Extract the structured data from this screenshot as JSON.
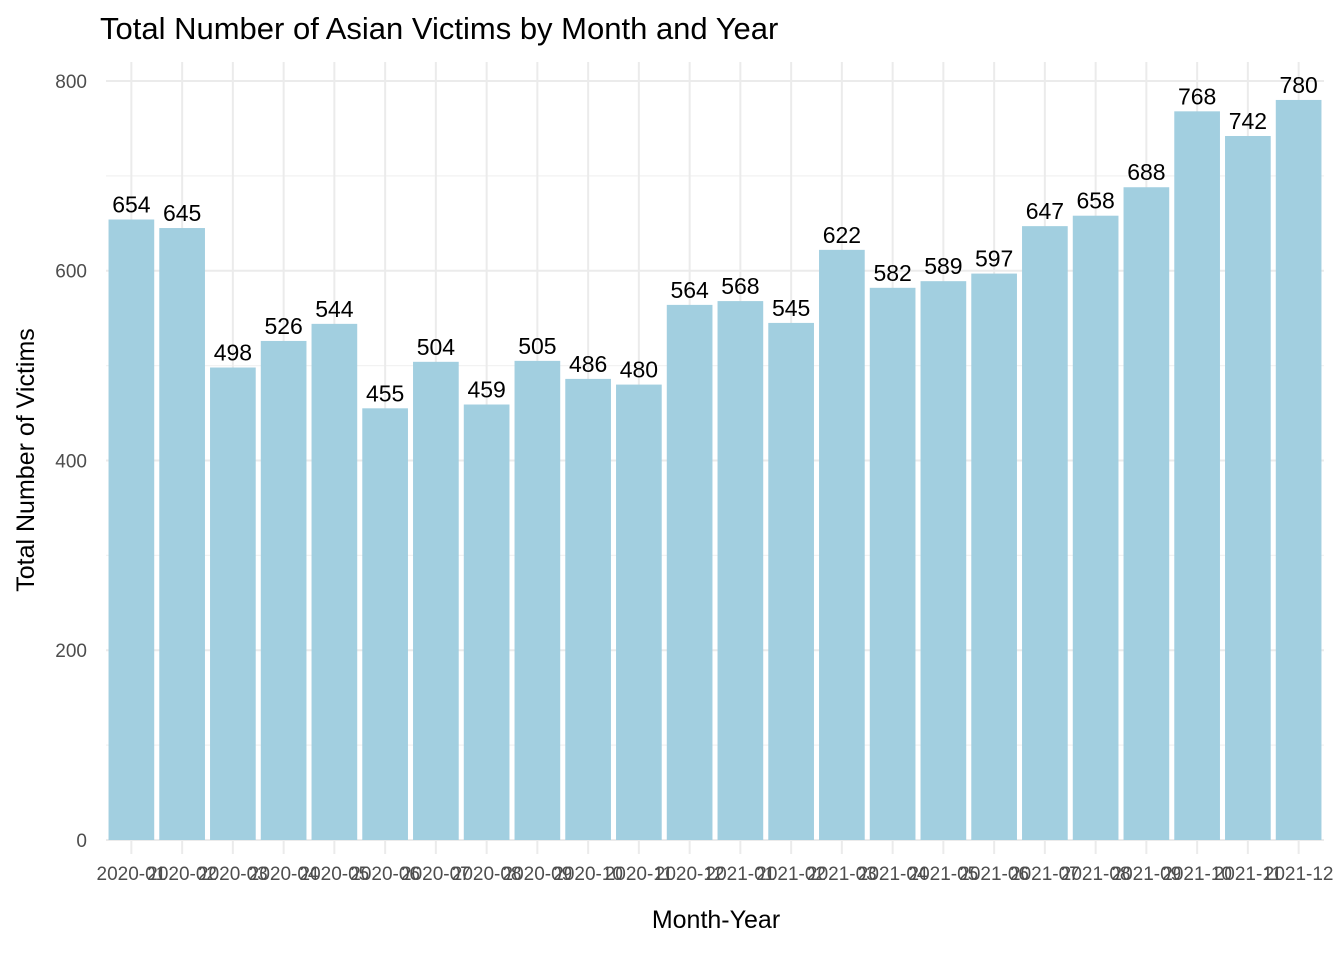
{
  "chart_data": {
    "type": "bar",
    "title": "Total Number of Asian Victims by Month and Year",
    "xlabel": "Month-Year",
    "ylabel": "Total Number of Victims",
    "categories": [
      "2020-01",
      "2020-02",
      "2020-03",
      "2020-04",
      "2020-05",
      "2020-06",
      "2020-07",
      "2020-08",
      "2020-09",
      "2020-10",
      "2020-11",
      "2020-12",
      "2021-01",
      "2021-02",
      "2021-03",
      "2021-04",
      "2021-05",
      "2021-06",
      "2021-07",
      "2021-08",
      "2021-09",
      "2021-10",
      "2021-11",
      "2021-12"
    ],
    "values": [
      654,
      645,
      498,
      526,
      544,
      455,
      504,
      459,
      505,
      486,
      480,
      564,
      568,
      545,
      622,
      582,
      589,
      597,
      647,
      658,
      688,
      768,
      742,
      780
    ],
    "ylim": [
      0,
      820
    ],
    "yticks": [
      0,
      200,
      400,
      600,
      800
    ],
    "grid": true,
    "bar_color": "#a2cfe0",
    "legend": "none"
  }
}
